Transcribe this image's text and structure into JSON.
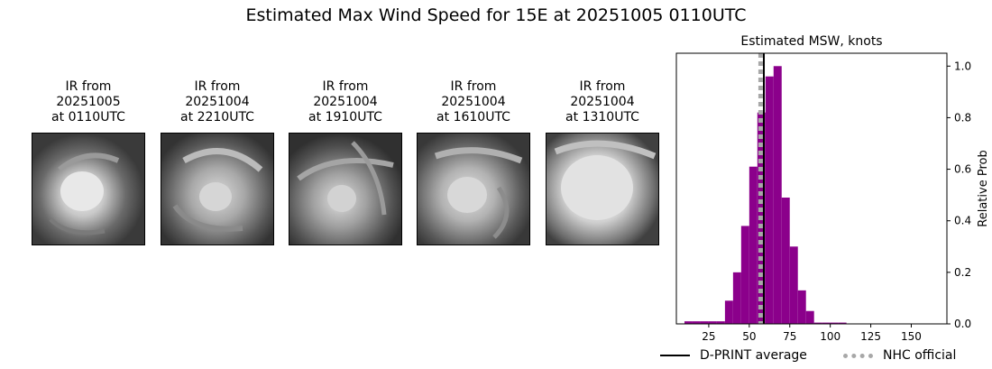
{
  "title": "Estimated Max Wind Speed for 15E at 20251005 0110UTC",
  "ir_panels": [
    {
      "caption": "IR from\n20251005\nat 0110UTC"
    },
    {
      "caption": "IR from\n20251004\nat 2210UTC"
    },
    {
      "caption": "IR from\n20251004\nat 1910UTC"
    },
    {
      "caption": "IR from\n20251004\nat 1610UTC"
    },
    {
      "caption": "IR from\n20251004\nat 1310UTC"
    }
  ],
  "chart_data": {
    "type": "bar",
    "title": "Estimated MSW, knots",
    "xlabel": "",
    "ylabel": "Relative Prob",
    "xlim": [
      5,
      172
    ],
    "ylim": [
      0,
      1.05
    ],
    "xticks": [
      25,
      50,
      75,
      100,
      125,
      150
    ],
    "yticks": [
      0.0,
      0.2,
      0.4,
      0.6,
      0.8,
      1.0
    ],
    "bin_width": 5,
    "bins": [
      {
        "x": 15,
        "value": 0.01
      },
      {
        "x": 20,
        "value": 0.01
      },
      {
        "x": 25,
        "value": 0.01
      },
      {
        "x": 30,
        "value": 0.01
      },
      {
        "x": 35,
        "value": 0.01
      },
      {
        "x": 40,
        "value": 0.09
      },
      {
        "x": 45,
        "value": 0.2
      },
      {
        "x": 50,
        "value": 0.38
      },
      {
        "x": 55,
        "value": 0.61
      },
      {
        "x": 60,
        "value": 0.82
      },
      {
        "x": 65,
        "value": 0.96
      },
      {
        "x": 70,
        "value": 1.0
      },
      {
        "x": 75,
        "value": 0.49
      },
      {
        "x": 80,
        "value": 0.3
      },
      {
        "x": 85,
        "value": 0.13
      },
      {
        "x": 90,
        "value": 0.05
      },
      {
        "x": 95,
        "value": 0.005
      },
      {
        "x": 100,
        "value": 0.005
      },
      {
        "x": 105,
        "value": 0.005
      },
      {
        "x": 110,
        "value": 0.005
      }
    ],
    "bar_color": "#8b008b",
    "dprint_average": 59,
    "nhc_official": 57,
    "legend": {
      "dprint_label": "D-PRINT average",
      "nhc_label": "NHC official",
      "position": "bottom"
    }
  }
}
